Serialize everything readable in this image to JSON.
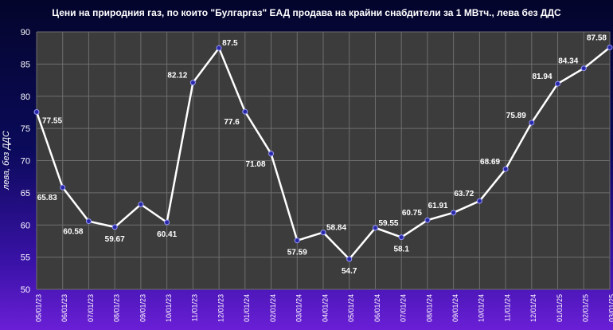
{
  "chart_data": {
    "type": "line",
    "title": "Цени на природния газ, по които \"Булгаргаз\" ЕАД продава на крайни снабдители за 1 МВтч., лева без  ДДС",
    "xlabel": "",
    "ylabel": "лева,  без ДДС",
    "ylim": [
      50,
      90
    ],
    "yticks": [
      50,
      55,
      60,
      65,
      70,
      75,
      80,
      85,
      90
    ],
    "grid": true,
    "legend": "none",
    "categories": [
      "05/01/23",
      "06/01/23",
      "07/01/23",
      "08/01/23",
      "09/01/23",
      "10/01/23",
      "11/01/23",
      "12/01/23",
      "01/01/24",
      "02/01/24",
      "03/01/24",
      "04/01/24",
      "05/01/24",
      "06/01/24",
      "07/01/24",
      "08/01/24",
      "09/01/24",
      "10/01/24",
      "11/01/24",
      "12/01/24",
      "01/01/25",
      "02/01/25",
      "03/01/25"
    ],
    "series": [
      {
        "values": [
          77.55,
          65.83,
          60.58,
          59.67,
          63.2,
          60.41,
          82.12,
          87.5,
          77.6,
          71.08,
          57.59,
          58.84,
          54.7,
          59.55,
          58.1,
          60.75,
          61.91,
          63.72,
          68.69,
          75.89,
          81.94,
          84.34,
          87.58
        ],
        "labels": [
          "77.55",
          "65.83",
          "60.58",
          "59.67",
          "",
          "60.41",
          "82.12",
          "87.5",
          "77.6",
          "71.08",
          "57.59",
          "58.84",
          "54.7",
          "59.55",
          "58.1",
          "60.75",
          "61.91",
          "63.72",
          "68.69",
          "75.89",
          "81.94",
          "84.34",
          "87.58"
        ]
      }
    ],
    "colors": {
      "line": "#ffffff",
      "marker": "#2a2aa8",
      "plot_bg": "#3c3c3c",
      "grid": "#6e6e6e"
    }
  }
}
